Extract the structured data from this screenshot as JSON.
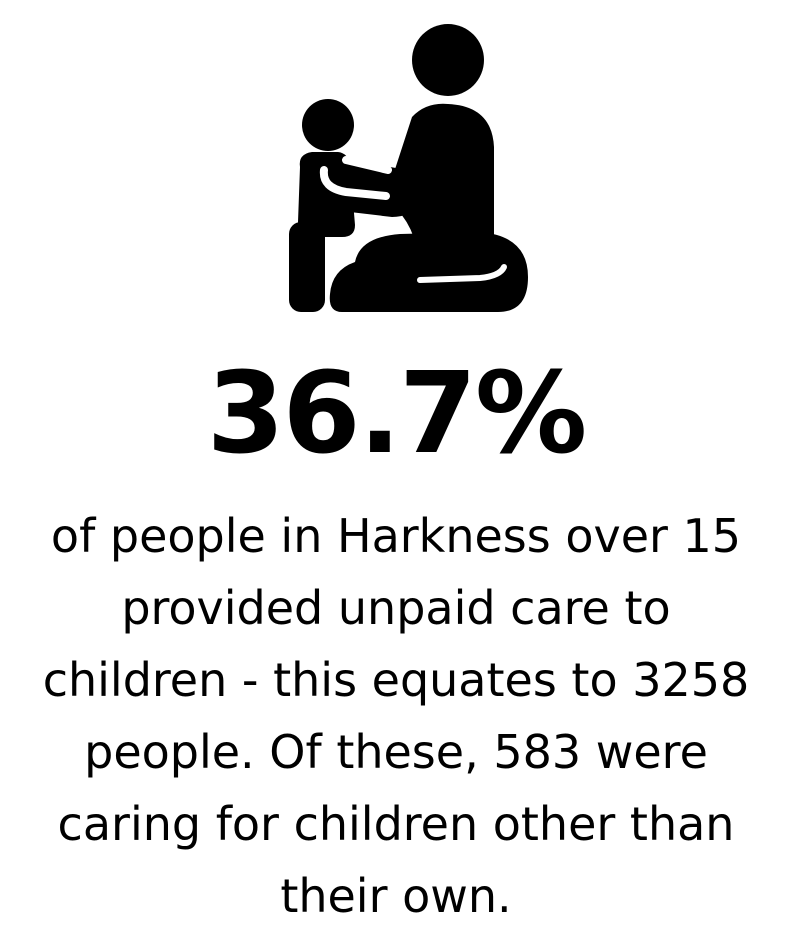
{
  "icon": "adult-kneeling-with-child-icon",
  "stat": {
    "value": "36.7%"
  },
  "description": {
    "lines": [
      "of people in Harkness over 15",
      "provided unpaid care to",
      "children - this equates to 3258",
      "people. Of these, 583 were",
      "caring for children other than",
      "their own."
    ]
  }
}
